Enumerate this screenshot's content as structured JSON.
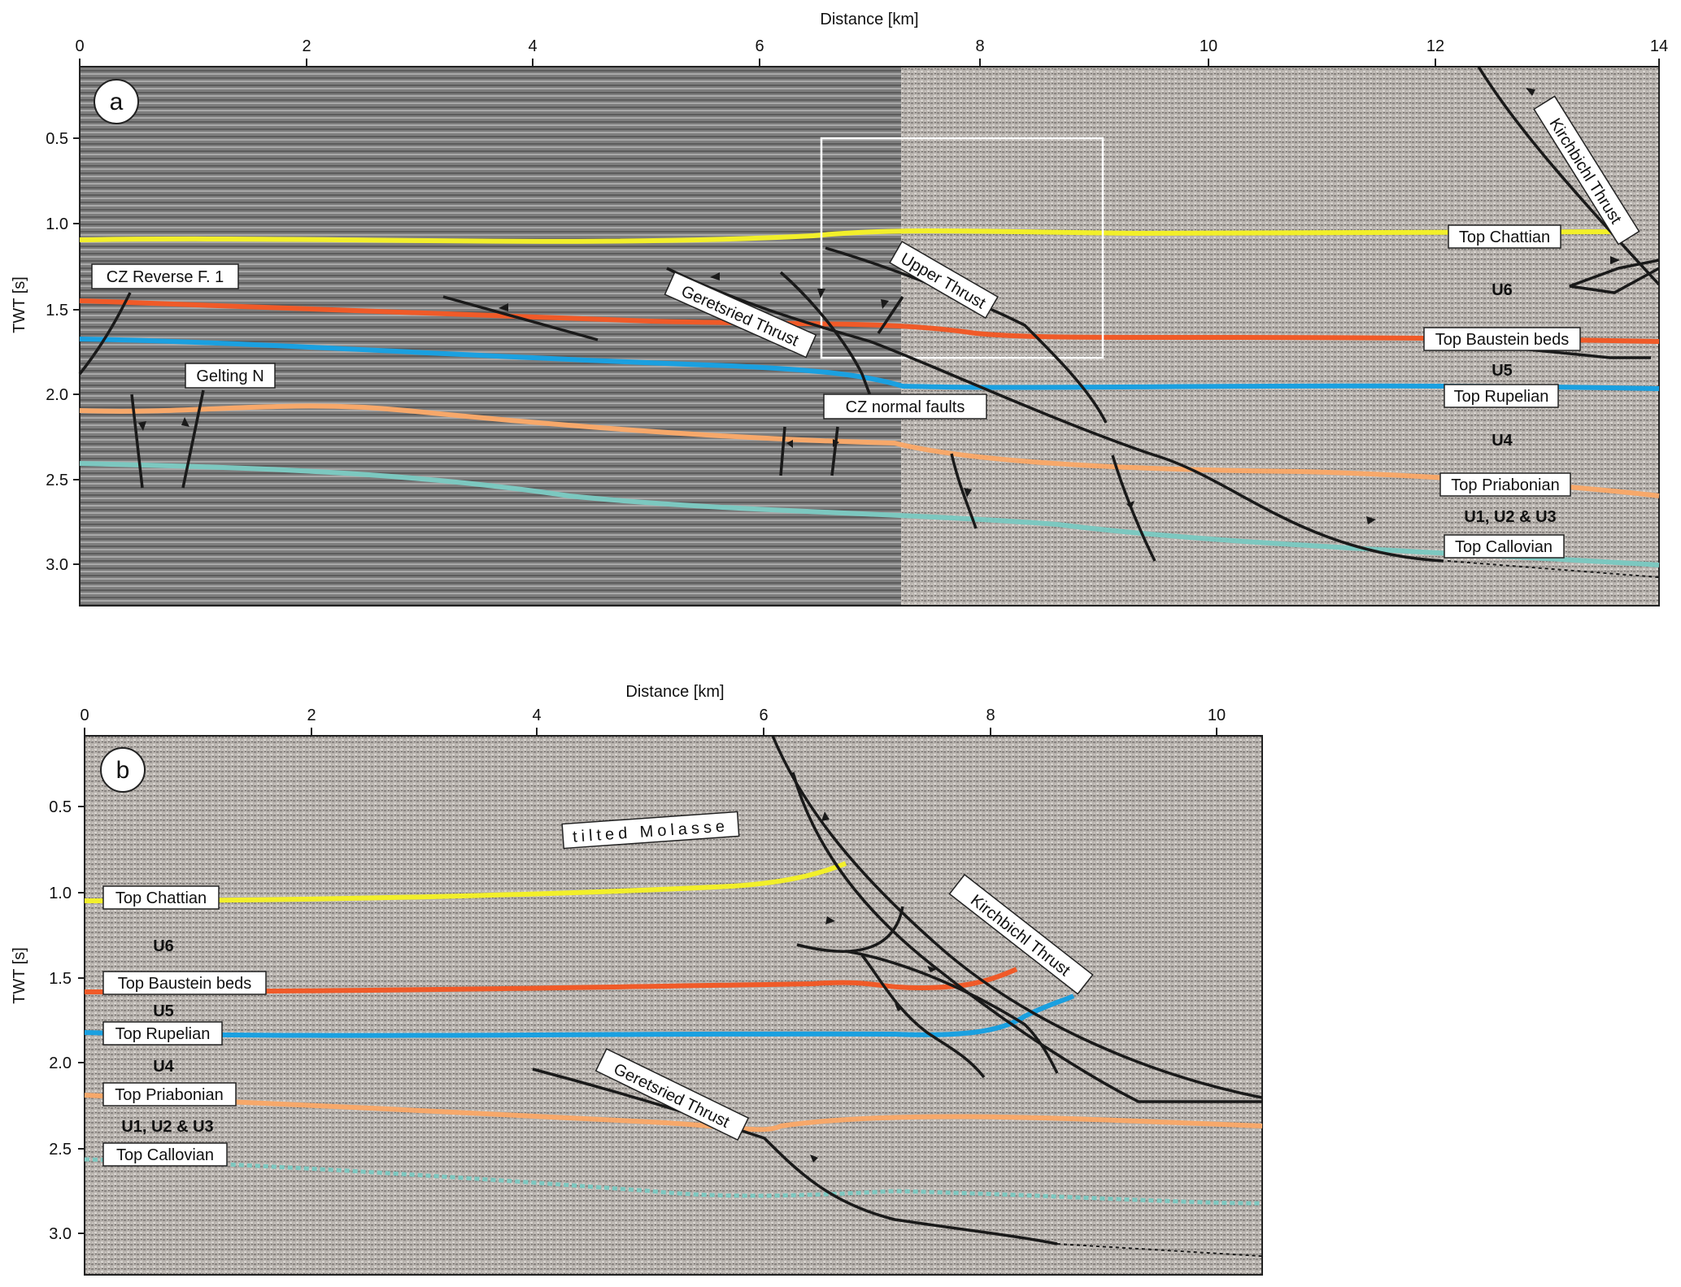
{
  "panel_a": {
    "letter": "a",
    "x_title": "Distance [km]",
    "y_title": "TWT [s]",
    "x_ticks": [
      "0",
      "2",
      "4",
      "6",
      "8",
      "10",
      "12",
      "14"
    ],
    "y_ticks": [
      "0.5",
      "1.0",
      "1.5",
      "2.0",
      "2.5",
      "3.0"
    ],
    "horizon_labels": {
      "chattian": "Top Chattian",
      "baustein": "Top Baustein beds",
      "rupelian": "Top Rupelian",
      "priabonian": "Top Priabonian",
      "callovian": "Top Callovian"
    },
    "unit_labels": {
      "u6": "U6",
      "u5": "U5",
      "u4": "U4",
      "u123": "U1, U2 & U3"
    },
    "fault_labels": {
      "kirchbichl": "Kirchbichl Thrust",
      "upper": "Upper Thrust",
      "geretsried": "Geretsried Thrust",
      "cz_reverse": "CZ Reverse F. 1",
      "gelting": "Gelting N",
      "cz_normal": "CZ normal faults"
    }
  },
  "panel_b": {
    "letter": "b",
    "x_title": "Distance [km]",
    "y_title": "TWT [s]",
    "x_ticks": [
      "0",
      "2",
      "4",
      "6",
      "8",
      "10"
    ],
    "y_ticks": [
      "0.5",
      "1.0",
      "1.5",
      "2.0",
      "2.5",
      "3.0"
    ],
    "horizon_labels": {
      "chattian": "Top Chattian",
      "baustein": "Top Baustein beds",
      "rupelian": "Top Rupelian",
      "priabonian": "Top Priabonian",
      "callovian": "Top Callovian"
    },
    "unit_labels": {
      "u6": "U6",
      "u5": "U5",
      "u4": "U4",
      "u123": "U1, U2 & U3"
    },
    "fault_labels": {
      "kirchbichl": "Kirchbichl Thrust",
      "geretsried": "Geretsried Thrust",
      "molasse": "tilted Molasse"
    }
  },
  "colors": {
    "chattian": "#f2ef2a",
    "baustein": "#f05a28",
    "rupelian": "#1aa0e0",
    "priabonian": "#f7a86a",
    "callovian": "#7cc8c0",
    "fault": "#1a1a1a",
    "seismic_dark": "#7a7a7a",
    "seismic_light": "#b5b0aa"
  }
}
